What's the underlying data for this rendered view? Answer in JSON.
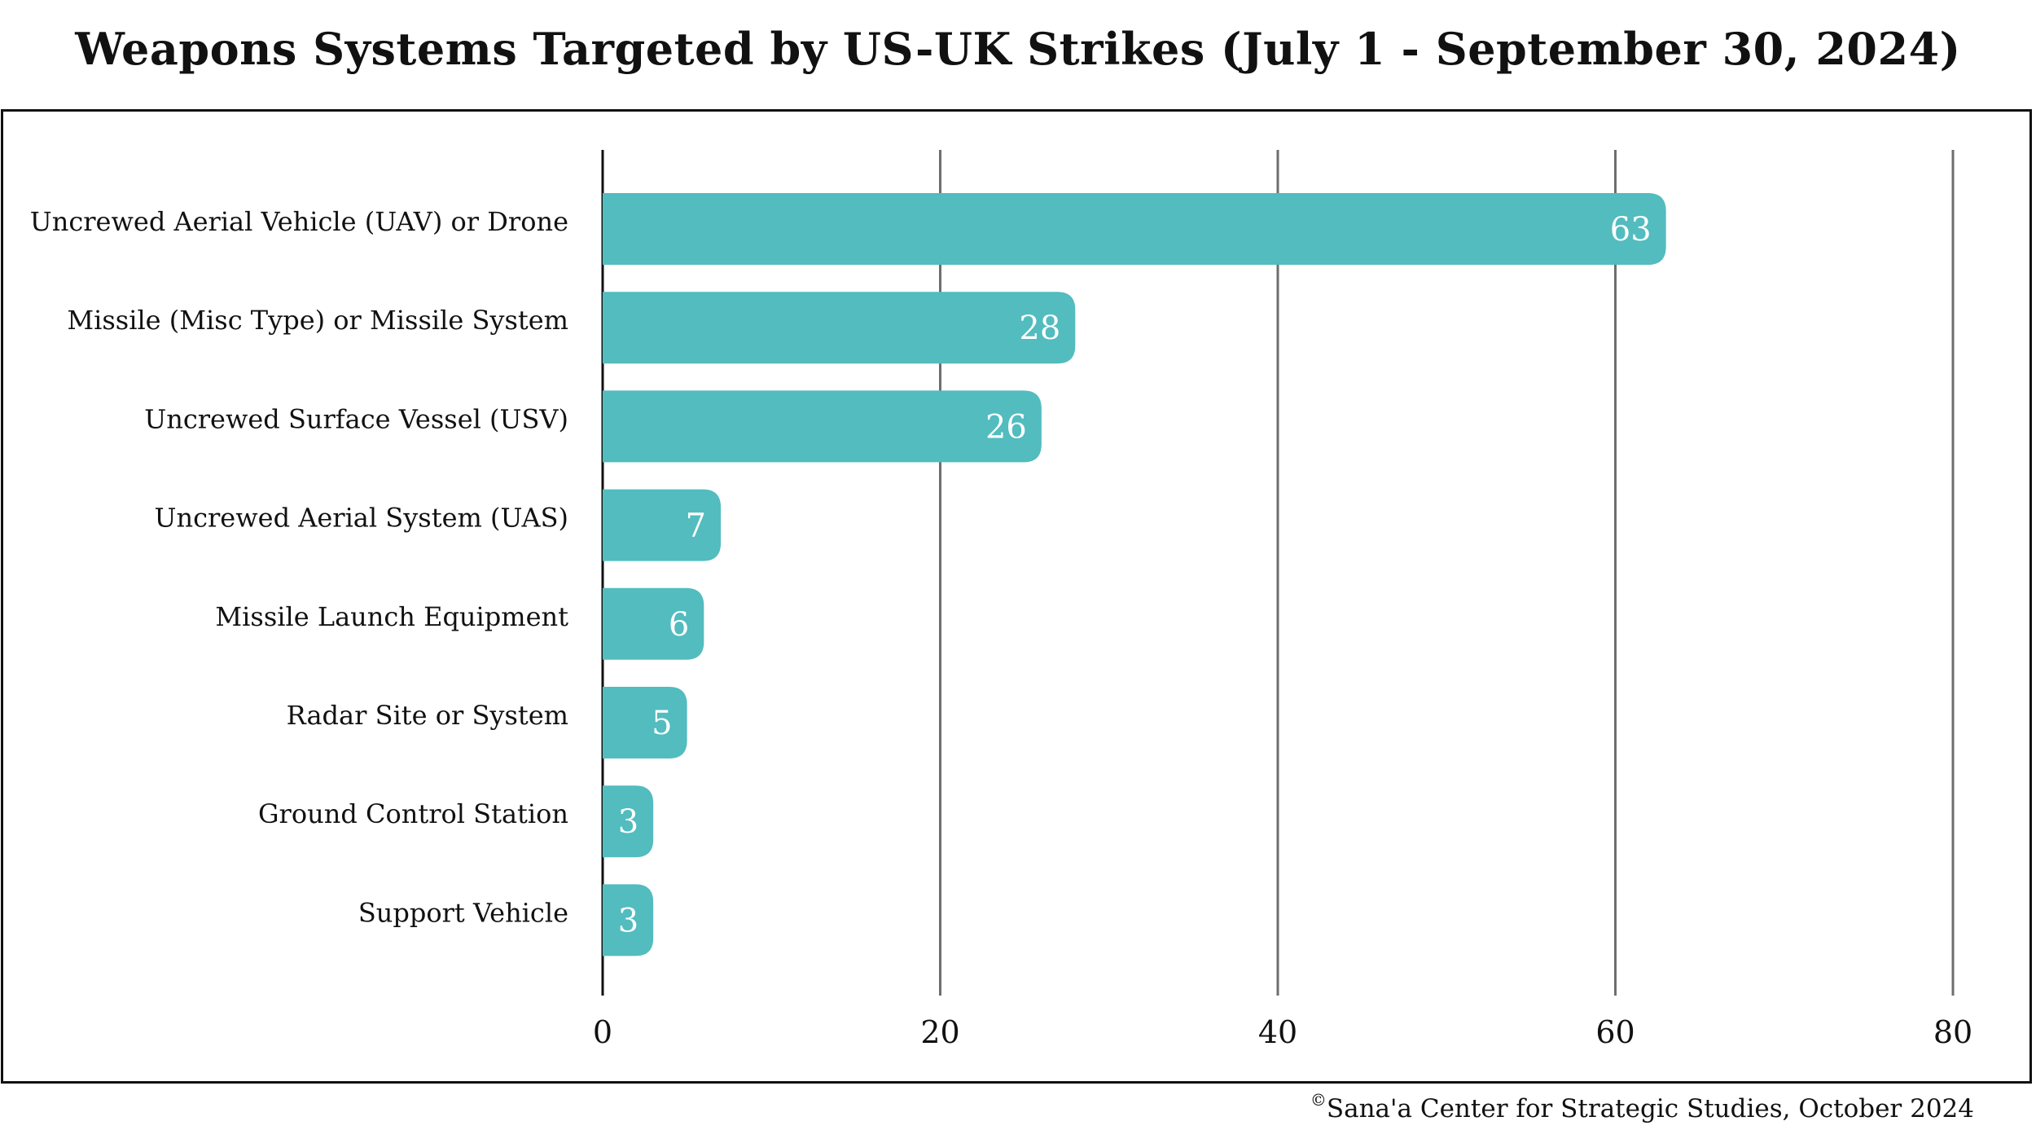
{
  "chart_data": {
    "type": "bar",
    "orientation": "horizontal",
    "title": "Weapons Systems Targeted by US-UK Strikes (July 1 - September 30, 2024)",
    "categories": [
      "Uncrewed Aerial Vehicle (UAV) or Drone",
      "Missile (Misc Type) or Missile System",
      "Uncrewed Surface Vessel (USV)",
      "Uncrewed Aerial System (UAS)",
      "Missile Launch Equipment",
      "Radar Site or System",
      "Ground Control Station",
      "Support Vehicle"
    ],
    "values": [
      63,
      28,
      26,
      7,
      6,
      5,
      3,
      3
    ],
    "xlim": [
      0,
      80
    ],
    "x_ticks": [
      0,
      20,
      40,
      60,
      80
    ],
    "grid": true,
    "legend": "none",
    "bar_color": "#52bcbf",
    "data_labels": true
  },
  "source": {
    "copyright_symbol": "©",
    "text": "Sana'a Center for Strategic Studies, October 2024"
  }
}
